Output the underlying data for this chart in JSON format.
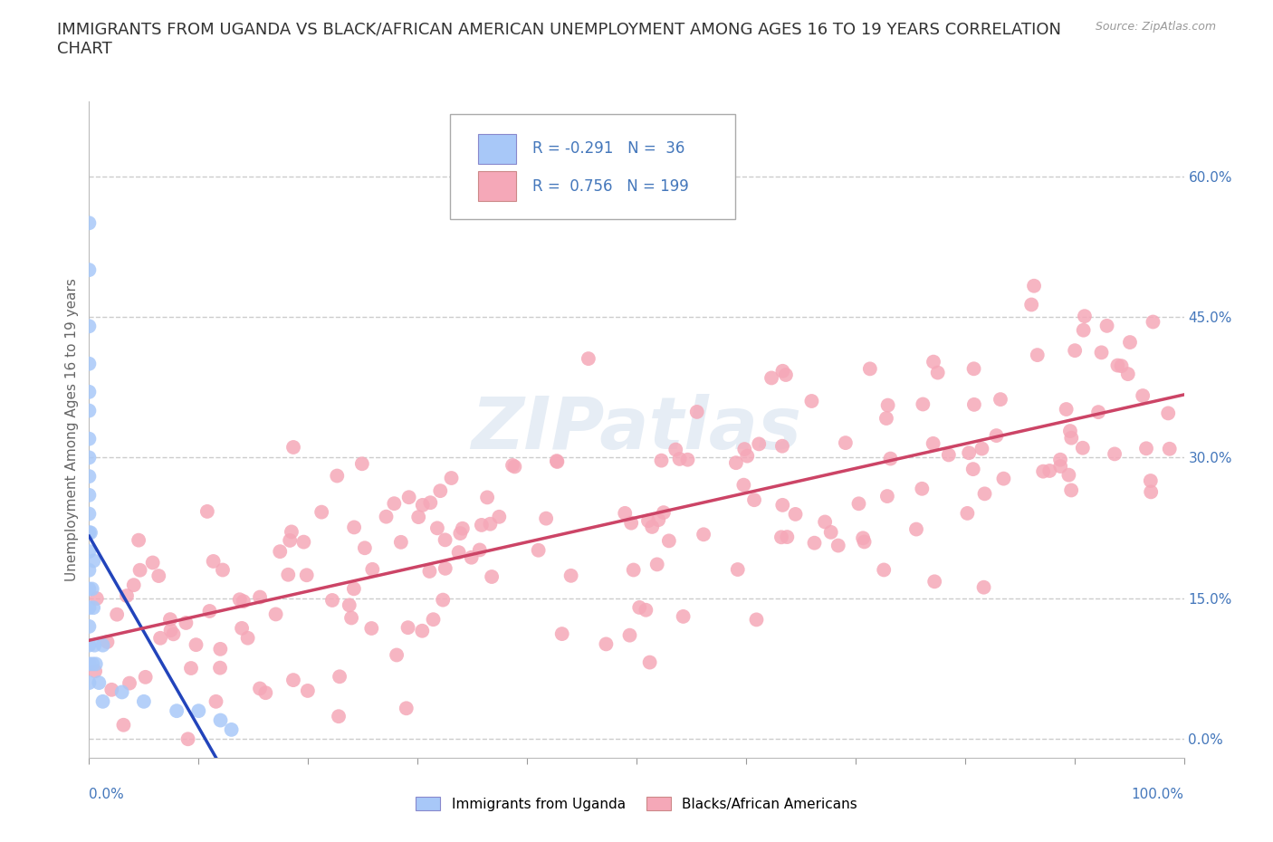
{
  "title_line1": "IMMIGRANTS FROM UGANDA VS BLACK/AFRICAN AMERICAN UNEMPLOYMENT AMONG AGES 16 TO 19 YEARS CORRELATION",
  "title_line2": "CHART",
  "source_text": "Source: ZipAtlas.com",
  "ylabel": "Unemployment Among Ages 16 to 19 years",
  "xlim": [
    0,
    1.0
  ],
  "ylim": [
    -0.02,
    0.68
  ],
  "yticks": [
    0.0,
    0.15,
    0.3,
    0.45,
    0.6
  ],
  "yticklabels": [
    "0.0%",
    "15.0%",
    "30.0%",
    "45.0%",
    "60.0%"
  ],
  "xtick_left_label": "0.0%",
  "xtick_right_label": "100.0%",
  "grid_color": "#cccccc",
  "background_color": "#ffffff",
  "blue_color": "#a8c8f8",
  "blue_line_color": "#2244bb",
  "pink_color": "#f5a8b8",
  "pink_line_color": "#cc4466",
  "legend_R1": "-0.291",
  "legend_N1": "36",
  "legend_R2": "0.756",
  "legend_N2": "199",
  "label1": "Immigrants from Uganda",
  "label2": "Blacks/African Americans",
  "watermark": "ZIPatlas",
  "title_fontsize": 13,
  "axis_fontsize": 11,
  "tick_fontsize": 11,
  "tick_color": "#4477bb"
}
